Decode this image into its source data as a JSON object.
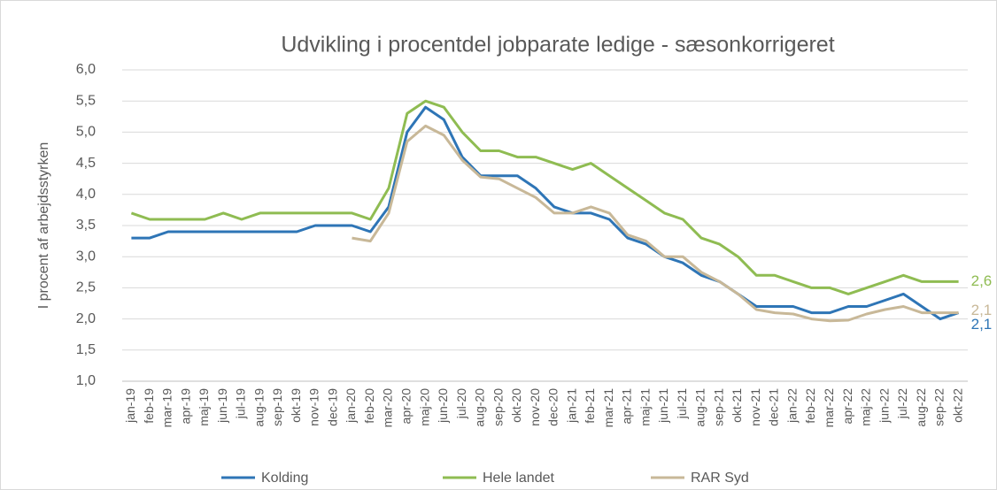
{
  "chart_data": {
    "type": "line",
    "title": "Udvikling i procentdel jobparate ledige - sæsonkorrigeret",
    "y_label": "I procent af arbejdsstyrken",
    "categories": [
      "jan-19",
      "feb-19",
      "mar-19",
      "apr-19",
      "maj-19",
      "jun-19",
      "jul-19",
      "aug-19",
      "sep-19",
      "okt-19",
      "nov-19",
      "dec-19",
      "jan-20",
      "feb-20",
      "mar-20",
      "apr-20",
      "maj-20",
      "jun-20",
      "jul-20",
      "aug-20",
      "sep-20",
      "okt-20",
      "nov-20",
      "dec-20",
      "jan-21",
      "feb-21",
      "mar-21",
      "apr-21",
      "maj-21",
      "jun-21",
      "jul-21",
      "aug-21",
      "sep-21",
      "okt-21",
      "nov-21",
      "dec-21",
      "jan-22",
      "feb-22",
      "mar-22",
      "apr-22",
      "maj-22",
      "jun-22",
      "jul-22",
      "aug-22",
      "sep-22",
      "okt-22"
    ],
    "series": [
      {
        "name": "Kolding",
        "color": "#2e75b6",
        "values": [
          3.3,
          3.3,
          3.4,
          3.4,
          3.4,
          3.4,
          3.4,
          3.4,
          3.4,
          3.4,
          3.5,
          3.5,
          3.5,
          3.4,
          3.8,
          5.0,
          5.4,
          5.2,
          4.6,
          4.3,
          4.3,
          4.3,
          4.1,
          3.8,
          3.7,
          3.7,
          3.6,
          3.3,
          3.2,
          3.0,
          2.9,
          2.7,
          2.6,
          2.4,
          2.2,
          2.2,
          2.2,
          2.1,
          2.1,
          2.2,
          2.2,
          2.3,
          2.4,
          2.2,
          2.0,
          2.1
        ],
        "value_labels": [
          null,
          null,
          null,
          null,
          null,
          null,
          null,
          null,
          null,
          null,
          null,
          null,
          null,
          null,
          null,
          null,
          null,
          null,
          null,
          null,
          null,
          null,
          null,
          null,
          null,
          null,
          null,
          null,
          null,
          null,
          null,
          null,
          null,
          null,
          null,
          null,
          null,
          null,
          null,
          null,
          null,
          null,
          null,
          null,
          null,
          "2,1"
        ]
      },
      {
        "name": "Hele landet",
        "color": "#8fbc52",
        "values": [
          3.7,
          3.6,
          3.6,
          3.6,
          3.6,
          3.7,
          3.6,
          3.7,
          3.7,
          3.7,
          3.7,
          3.7,
          3.7,
          3.6,
          4.1,
          5.3,
          5.5,
          5.4,
          5.0,
          4.7,
          4.7,
          4.6,
          4.6,
          4.5,
          4.4,
          4.5,
          4.3,
          4.1,
          3.9,
          3.7,
          3.6,
          3.3,
          3.2,
          3.0,
          2.7,
          2.7,
          2.6,
          2.5,
          2.5,
          2.4,
          2.5,
          2.6,
          2.7,
          2.6,
          2.6,
          2.6
        ],
        "value_labels": [
          null,
          null,
          null,
          null,
          null,
          null,
          null,
          null,
          null,
          null,
          null,
          null,
          null,
          null,
          null,
          null,
          null,
          null,
          null,
          null,
          null,
          null,
          null,
          null,
          null,
          null,
          null,
          null,
          null,
          null,
          null,
          null,
          null,
          null,
          null,
          null,
          null,
          null,
          null,
          null,
          null,
          null,
          null,
          null,
          null,
          "2,6"
        ]
      },
      {
        "name": "RAR Syd",
        "color": "#c8b898",
        "values": [
          null,
          null,
          null,
          null,
          null,
          null,
          null,
          null,
          null,
          null,
          null,
          null,
          3.3,
          3.25,
          3.7,
          4.85,
          5.1,
          4.95,
          4.55,
          4.28,
          4.25,
          4.1,
          3.95,
          3.7,
          3.7,
          3.8,
          3.7,
          3.35,
          3.25,
          3.0,
          3.0,
          2.75,
          2.6,
          2.4,
          2.15,
          2.1,
          2.08,
          2.0,
          1.97,
          1.98,
          2.08,
          2.15,
          2.2,
          2.1,
          2.1,
          2.1
        ],
        "value_labels": [
          null,
          null,
          null,
          null,
          null,
          null,
          null,
          null,
          null,
          null,
          null,
          null,
          null,
          null,
          null,
          null,
          null,
          null,
          null,
          null,
          null,
          null,
          null,
          null,
          null,
          null,
          null,
          null,
          null,
          null,
          null,
          null,
          null,
          null,
          null,
          null,
          null,
          null,
          null,
          null,
          null,
          null,
          null,
          null,
          null,
          "2,1"
        ]
      }
    ],
    "ylim": [
      1.0,
      6.0
    ],
    "yticks": [
      {
        "value": 1.0,
        "label": "1,0"
      },
      {
        "value": 1.5,
        "label": "1,5"
      },
      {
        "value": 2.0,
        "label": "2,0"
      },
      {
        "value": 2.5,
        "label": "2,5"
      },
      {
        "value": 3.0,
        "label": "3,0"
      },
      {
        "value": 3.5,
        "label": "3,5"
      },
      {
        "value": 4.0,
        "label": "4,0"
      },
      {
        "value": 4.5,
        "label": "4,5"
      },
      {
        "value": 5.0,
        "label": "5,0"
      },
      {
        "value": 5.5,
        "label": "5,5"
      },
      {
        "value": 6.0,
        "label": "6,0"
      }
    ],
    "grid": true,
    "legend": "bottom"
  }
}
